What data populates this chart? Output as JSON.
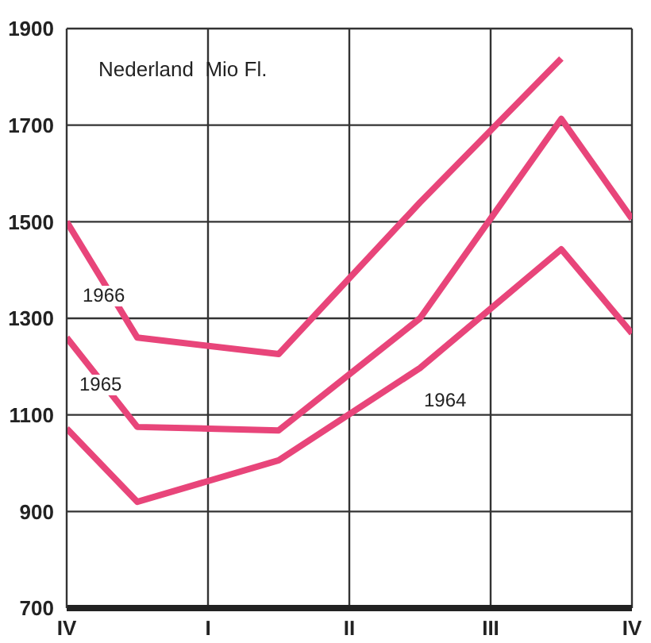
{
  "chart_data": {
    "type": "line",
    "title": "Nederland  Mio Fl.",
    "categories": [
      "IV",
      null,
      "I",
      null,
      "II",
      null,
      "III",
      null,
      "IV"
    ],
    "ylim": [
      700,
      1900
    ],
    "yticks": [
      700,
      900,
      1100,
      1300,
      1500,
      1700,
      1900
    ],
    "grid": true,
    "marker": "none",
    "line_style": "solid",
    "series": [
      {
        "color": "#e8457a",
        "values": [
          1500,
          1260,
          null,
          1226,
          null,
          1540,
          null,
          1838,
          null
        ]
      },
      {
        "color": "#e8457a",
        "values": [
          1260,
          1075,
          null,
          1068,
          null,
          1300,
          null,
          1713,
          1506
        ]
      },
      {
        "color": "#e8457a",
        "values": [
          1072,
          920,
          null,
          1006,
          null,
          1197,
          null,
          1443,
          1269
        ]
      }
    ],
    "annotations": [
      "1966",
      "1965",
      "1964"
    ]
  }
}
